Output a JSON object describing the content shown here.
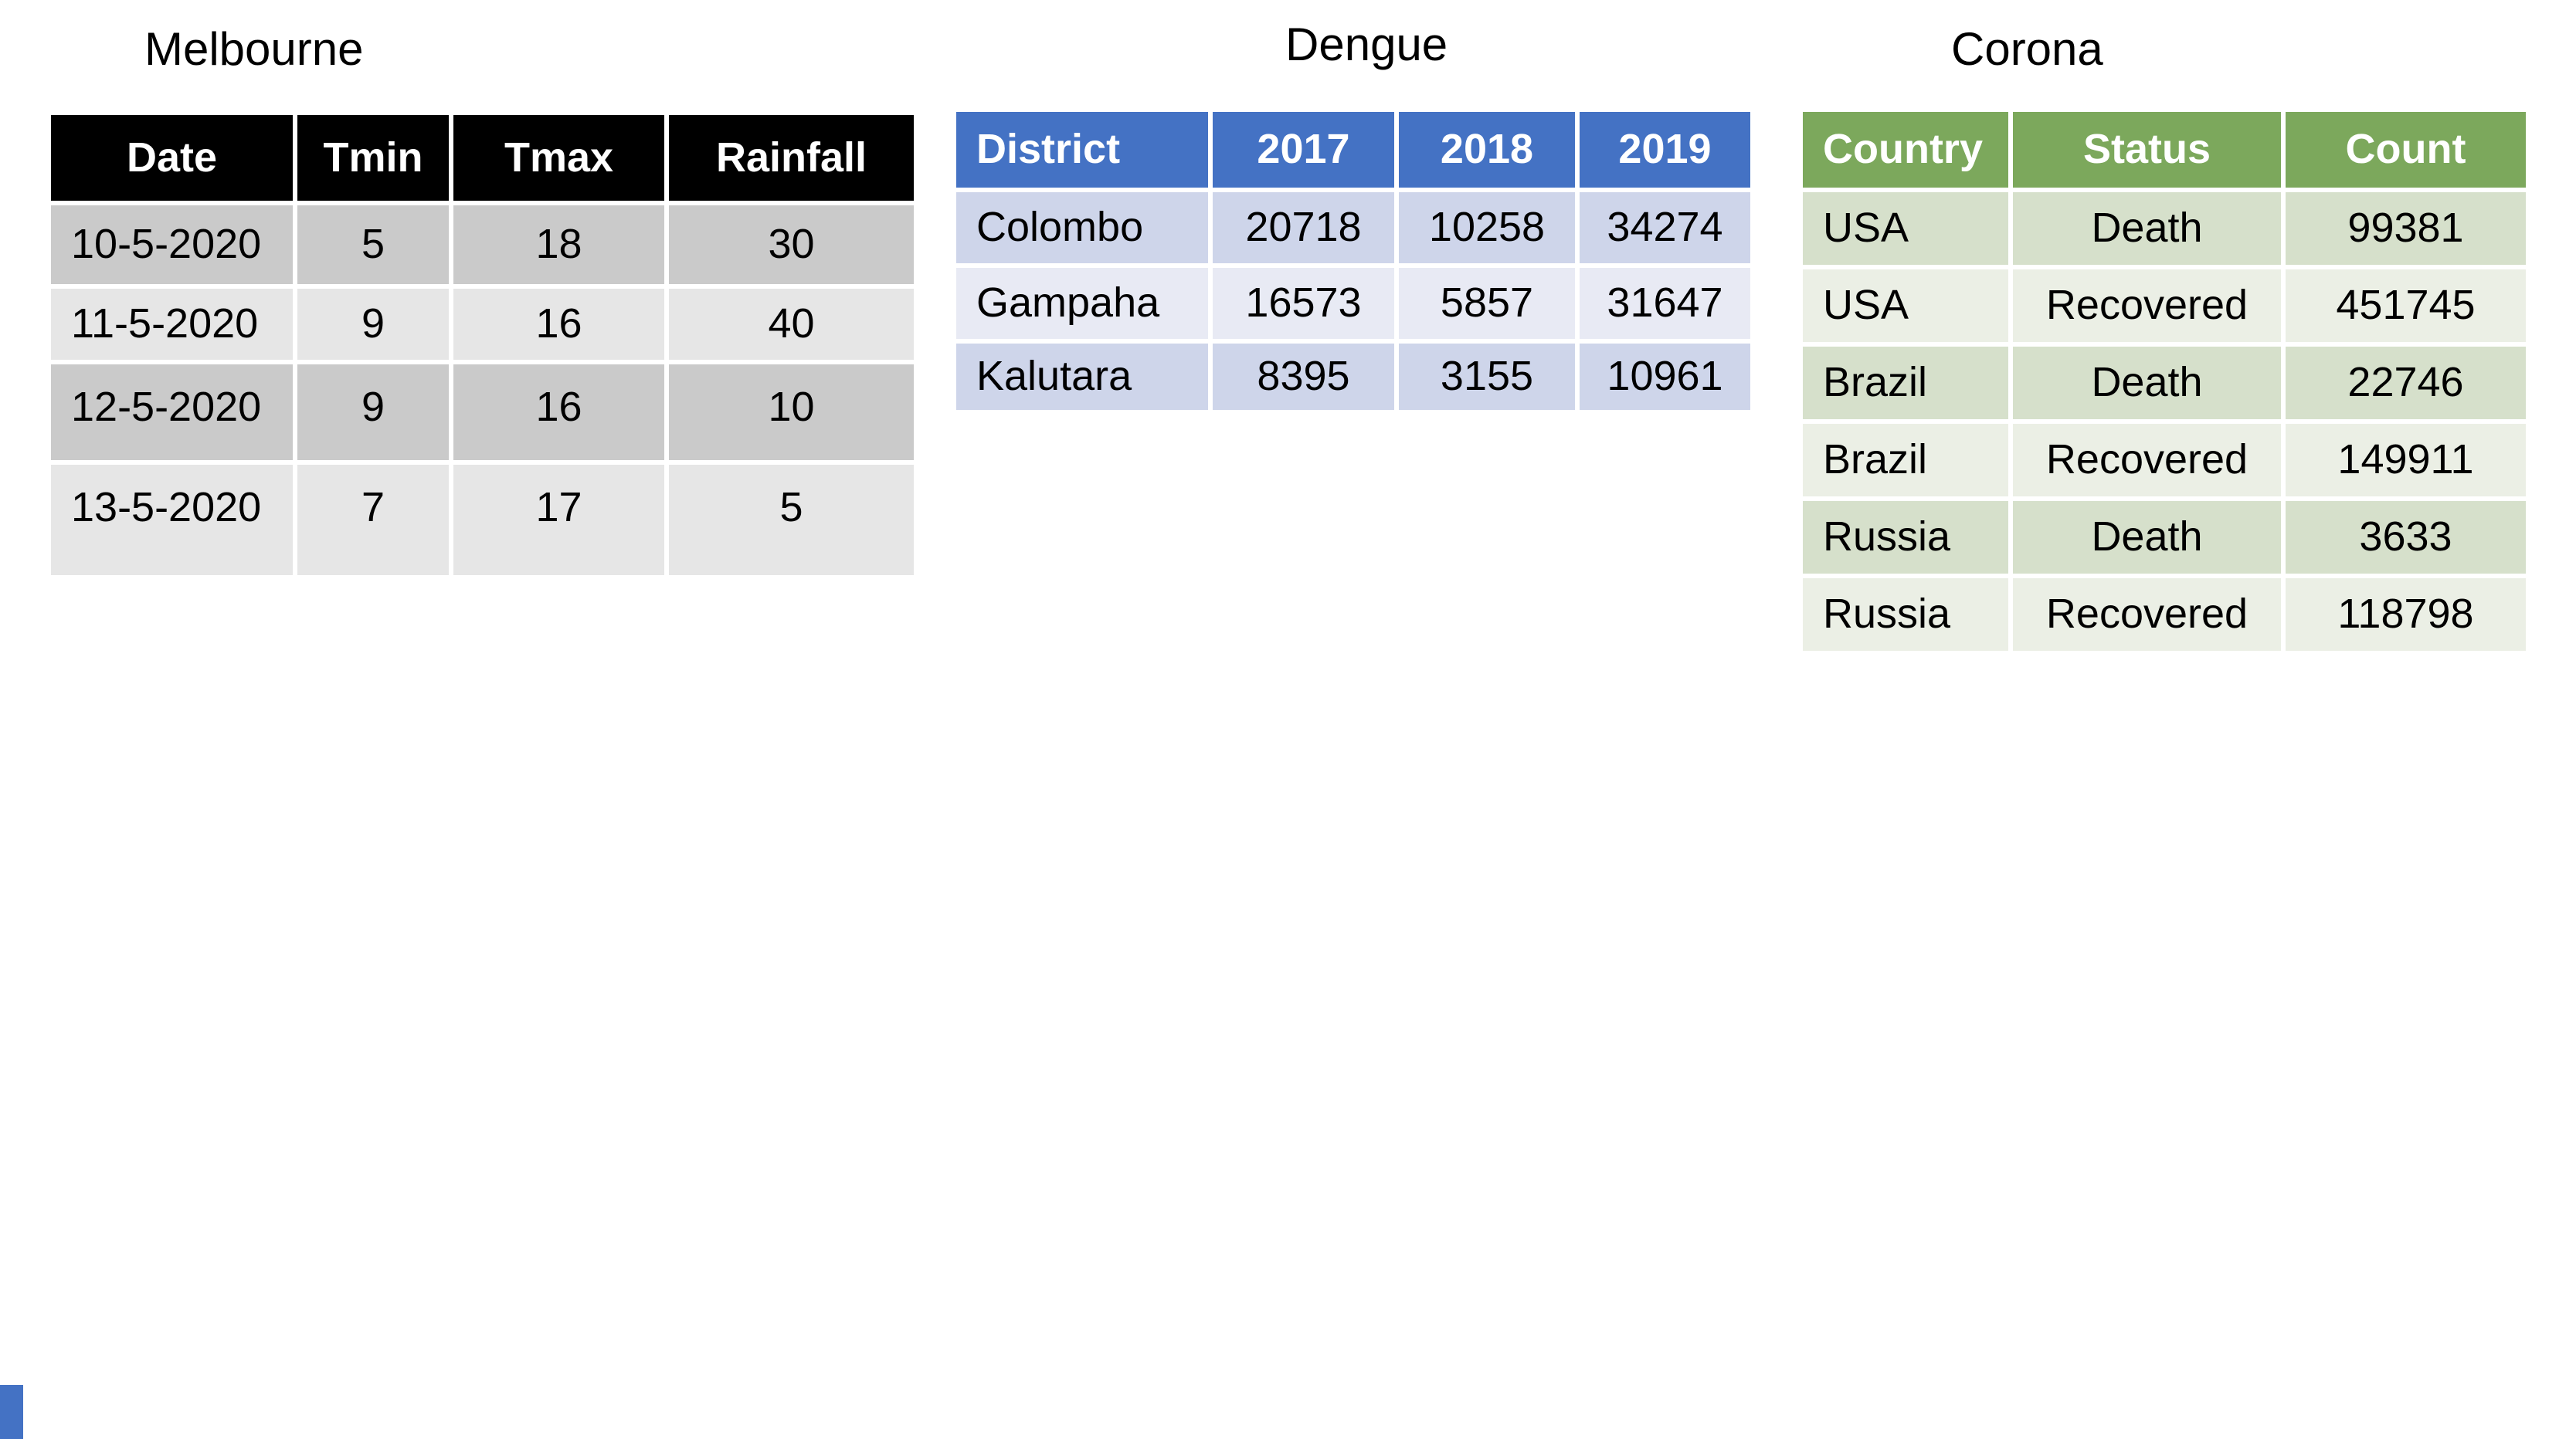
{
  "slide": {
    "background": "#FFFFFF"
  },
  "tables": [
    {
      "title": "Melbourne",
      "columns": [
        "Date",
        "Tmin",
        "Tmax",
        "Rainfall"
      ],
      "rows": [
        [
          "10-5-2020",
          "5",
          "18",
          "30"
        ],
        [
          "11-5-2020",
          "9",
          "16",
          "40"
        ],
        [
          "12-5-2020",
          "9",
          "16",
          "10"
        ],
        [
          "13-5-2020",
          "7",
          "17",
          "5"
        ]
      ],
      "theme": {
        "header_bg": "#000000",
        "header_text": "#FFFFFF",
        "band_dark": "#CACACA",
        "band_light": "#E6E6E6",
        "body_text": "#000000"
      }
    },
    {
      "title": "Dengue",
      "columns": [
        "District",
        "2017",
        "2018",
        "2019"
      ],
      "rows": [
        [
          "Colombo",
          "20718",
          "10258",
          "34274"
        ],
        [
          "Gampaha",
          "16573",
          "5857",
          "31647"
        ],
        [
          "Kalutara",
          "8395",
          "3155",
          "10961"
        ]
      ],
      "theme": {
        "header_bg": "#4472C4",
        "header_text": "#FFFFFF",
        "band_dark": "#CED5EA",
        "band_light": "#E8EAF4",
        "body_text": "#000000"
      }
    },
    {
      "title": "Corona",
      "columns": [
        "Country",
        "Status",
        "Count"
      ],
      "rows": [
        [
          "USA",
          "Death",
          "99381"
        ],
        [
          "USA",
          "Recovered",
          "451745"
        ],
        [
          "Brazil",
          "Death",
          "22746"
        ],
        [
          "Brazil",
          "Recovered",
          "149911"
        ],
        [
          "Russia",
          "Death",
          "3633"
        ],
        [
          "Russia",
          "Recovered",
          "118798"
        ]
      ],
      "theme": {
        "header_bg": "#7CA85C",
        "header_text": "#FFFFFF",
        "band_dark": "#D6E0CB",
        "band_light": "#EBEFE5",
        "body_text": "#000000"
      }
    }
  ],
  "decorations": {
    "corner_accent_color": "#4472C4"
  }
}
